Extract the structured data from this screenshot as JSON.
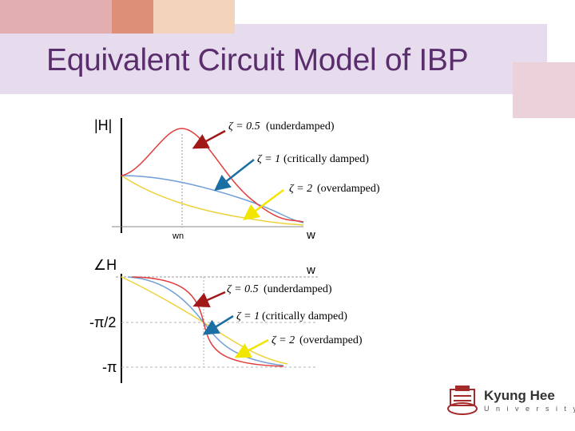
{
  "slide": {
    "title": "Equivalent Circuit Model of IBP"
  },
  "magnitude_plot": {
    "y_label": "|H|",
    "x_label": "w",
    "natural_freq_label": "wn",
    "annotations": [
      {
        "zeta": "ζ = 0.5",
        "text": "(underdamped)",
        "arrow_color": "#a01818"
      },
      {
        "zeta": "ζ = 1",
        "text": "(critically damped)",
        "arrow_color": "#1a6fa5"
      },
      {
        "zeta": "ζ = 2",
        "text": "(overdamped)",
        "arrow_color": "#f2e600"
      }
    ]
  },
  "phase_plot": {
    "y_label": "∠H",
    "x_label": "w",
    "tick_labels": [
      "-π/2",
      "-π"
    ],
    "annotations": [
      {
        "zeta": "ζ = 0.5",
        "text": "(underdamped)",
        "arrow_color": "#a01818"
      },
      {
        "zeta": "ζ = 1",
        "text": "(critically damped)",
        "arrow_color": "#1a6fa5"
      },
      {
        "zeta": "ζ = 2",
        "text": "(overdamped)",
        "arrow_color": "#f2e600"
      }
    ]
  },
  "curve_colors": {
    "underdamped": "#e23c3c",
    "critically_damped": "#6f9fd6",
    "overdamped": "#eed23a"
  },
  "logo": {
    "name": "Kyung Hee",
    "sub": "University"
  }
}
